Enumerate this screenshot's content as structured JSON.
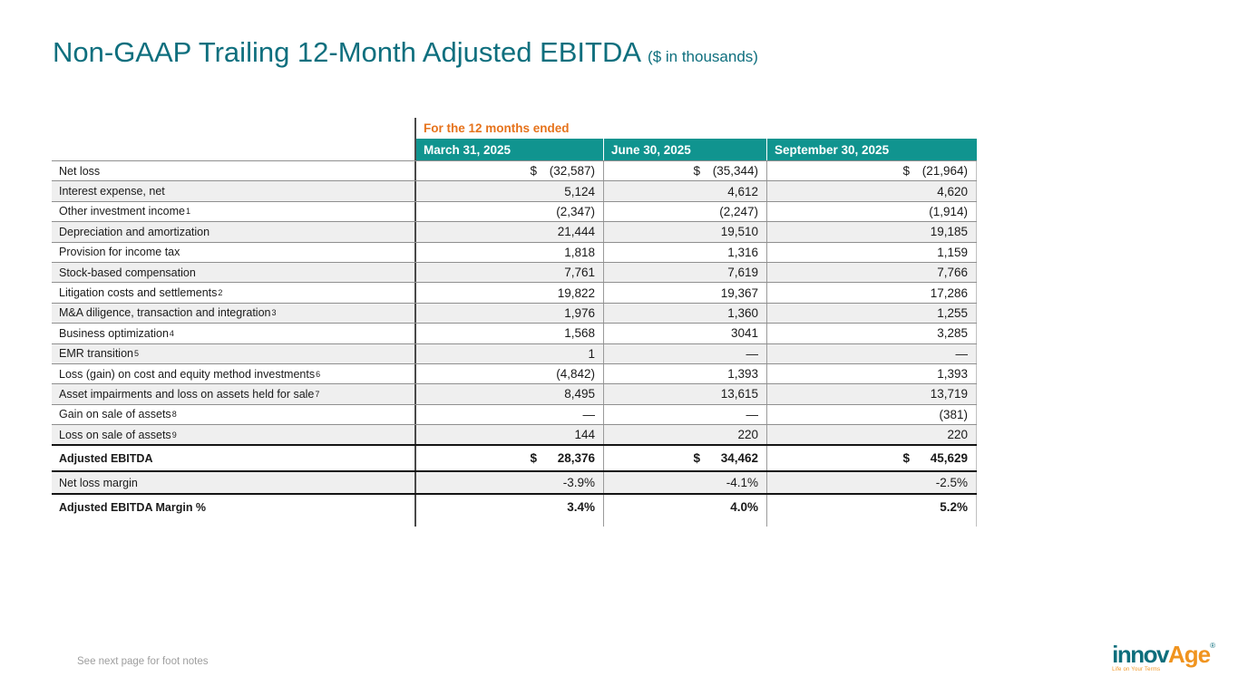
{
  "slide": {
    "title": "Non-GAAP Trailing 12-Month Adjusted EBITDA",
    "title_suffix": "($ in thousands)",
    "footer_note": "See next page for foot notes"
  },
  "logo": {
    "part1": "innov",
    "part2": "Age",
    "tagline": "Life on Your Terms"
  },
  "colors": {
    "title_teal": "#0E6F7E",
    "header_teal": "#10948F",
    "accent_orange": "#E6731C",
    "shaded_row": "#EFEFEF",
    "logo_orange": "#F0941F"
  },
  "table": {
    "group_header": "For the 12 months ended",
    "columns": [
      "March 31, 2025",
      "June 30, 2025",
      "September 30, 2025"
    ],
    "rows": [
      {
        "label": "Net loss",
        "dollar": true,
        "values": [
          "(32,587)",
          "(35,344)",
          "(21,964)"
        ]
      },
      {
        "label": "Interest expense, net",
        "values": [
          "5,124",
          "4,612",
          "4,620"
        ]
      },
      {
        "label": "Other investment income",
        "sup": "1",
        "values": [
          "(2,347)",
          "(2,247)",
          "(1,914)"
        ]
      },
      {
        "label": "Depreciation and amortization",
        "values": [
          "21,444",
          "19,510",
          "19,185"
        ]
      },
      {
        "label": "Provision for income tax",
        "values": [
          "1,818",
          "1,316",
          "1,159"
        ]
      },
      {
        "label": "Stock-based compensation",
        "values": [
          "7,761",
          "7,619",
          "7,766"
        ]
      },
      {
        "label": "Litigation costs and settlements",
        "sup": "2",
        "values": [
          "19,822",
          "19,367",
          "17,286"
        ]
      },
      {
        "label": "M&A diligence, transaction and integration",
        "sup": "3",
        "values": [
          "1,976",
          "1,360",
          "1,255"
        ]
      },
      {
        "label": "Business optimization",
        "sup": "4",
        "values": [
          "1,568",
          "3041",
          "3,285"
        ]
      },
      {
        "label": "EMR transition",
        "sup": "5",
        "values": [
          "1",
          "—",
          "—"
        ]
      },
      {
        "label": "Loss (gain) on cost and equity method investments",
        "sup": "6",
        "values": [
          "(4,842)",
          "1,393",
          "1,393"
        ]
      },
      {
        "label": "Asset impairments and loss on assets held for sale",
        "sup": "7",
        "values": [
          "8,495",
          "13,615",
          "13,719"
        ]
      },
      {
        "label": "Gain on sale of assets",
        "sup": "8",
        "values": [
          "—",
          "—",
          "(381)"
        ]
      },
      {
        "label": "Loss on sale of assets",
        "sup": "9",
        "values": [
          "144",
          "220",
          "220"
        ]
      },
      {
        "label": "Adjusted EBITDA",
        "bold": true,
        "dollar": true,
        "thick_top": true,
        "values": [
          "28,376",
          "34,462",
          "45,629"
        ]
      },
      {
        "label": "Net loss margin",
        "thick_top": true,
        "values": [
          "-3.9%",
          "-4.1%",
          "-2.5%"
        ]
      },
      {
        "label": "Adjusted EBITDA Margin %",
        "bold": true,
        "thick_top": true,
        "values": [
          "3.4%",
          "4.0%",
          "5.2%"
        ]
      }
    ]
  }
}
